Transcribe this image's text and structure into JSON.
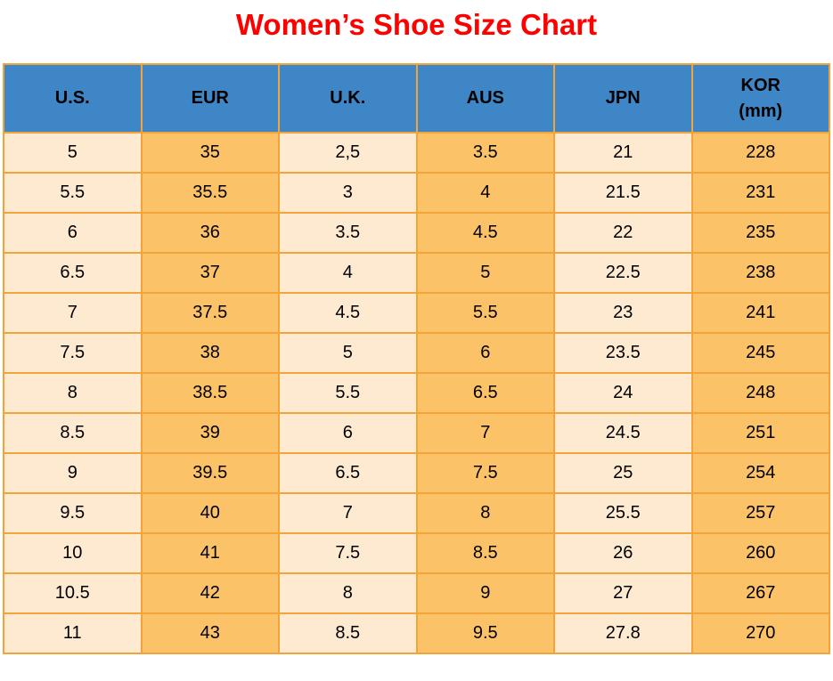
{
  "title": "Women’s Shoe Size Chart",
  "colors": {
    "title_red": "#ff0000",
    "header_blue": "#3f86c6",
    "col_cream": "#fdead1",
    "col_orange": "#fbc268",
    "border_orange": "#f2a33a",
    "text": "#000000"
  },
  "chart_data": {
    "type": "table",
    "title": "Women’s Shoe Size Chart",
    "columns": [
      {
        "label": "U.S."
      },
      {
        "label": "EUR"
      },
      {
        "label": "U.K."
      },
      {
        "label": "AUS"
      },
      {
        "label": "JPN"
      },
      {
        "label": "KOR",
        "sublabel": "(mm)"
      }
    ],
    "rows": [
      [
        "5",
        "35",
        "2,5",
        "3.5",
        "21",
        "228"
      ],
      [
        "5.5",
        "35.5",
        "3",
        "4",
        "21.5",
        "231"
      ],
      [
        "6",
        "36",
        "3.5",
        "4.5",
        "22",
        "235"
      ],
      [
        "6.5",
        "37",
        "4",
        "5",
        "22.5",
        "238"
      ],
      [
        "7",
        "37.5",
        "4.5",
        "5.5",
        "23",
        "241"
      ],
      [
        "7.5",
        "38",
        "5",
        "6",
        "23.5",
        "245"
      ],
      [
        "8",
        "38.5",
        "5.5",
        "6.5",
        "24",
        "248"
      ],
      [
        "8.5",
        "39",
        "6",
        "7",
        "24.5",
        "251"
      ],
      [
        "9",
        "39.5",
        "6.5",
        "7.5",
        "25",
        "254"
      ],
      [
        "9.5",
        "40",
        "7",
        "8",
        "25.5",
        "257"
      ],
      [
        "10",
        "41",
        "7.5",
        "8.5",
        "26",
        "260"
      ],
      [
        "10.5",
        "42",
        "8",
        "9",
        "27",
        "267"
      ],
      [
        "11",
        "43",
        "8.5",
        "9.5",
        "27.8",
        "270"
      ]
    ]
  }
}
